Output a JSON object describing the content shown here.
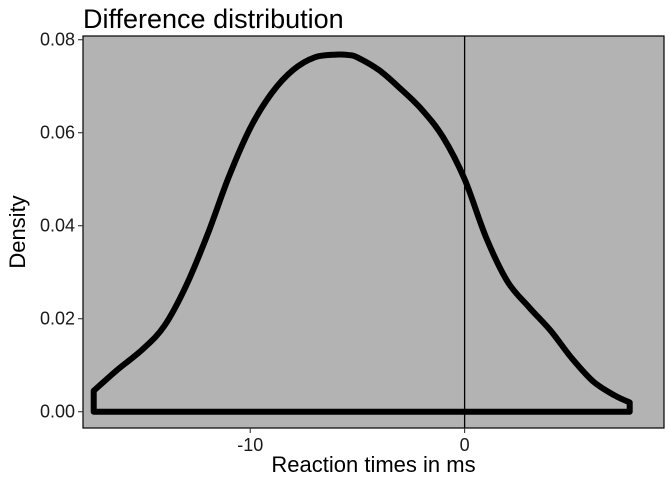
{
  "chart_data": {
    "type": "area",
    "title": "Difference distribution",
    "xlabel": "Reaction times in ms",
    "ylabel": "Density",
    "xlim": [
      -17.8,
      9.3
    ],
    "ylim": [
      -0.0035,
      0.0808
    ],
    "x_ticks": [
      -10,
      0
    ],
    "x_tick_labels": [
      "-10",
      "0"
    ],
    "y_ticks": [
      0,
      0.02,
      0.04,
      0.06,
      0.08
    ],
    "y_tick_labels": [
      "0.00",
      "0.02",
      "0.04",
      "0.06",
      "0.08"
    ],
    "reference_line_x": 0,
    "grid": false,
    "legend": "none",
    "panel_color": "#b3b3b3",
    "line_color": "#000000",
    "series": [
      {
        "x": [
          -17.3,
          -16.2,
          -15.0,
          -14.0,
          -13.0,
          -12.0,
          -11.0,
          -10.0,
          -9.0,
          -8.0,
          -7.0,
          -6.0,
          -5.4,
          -5.0,
          -4.0,
          -3.0,
          -2.0,
          -1.0,
          0.0,
          1.0,
          2.0,
          3.0,
          4.0,
          5.0,
          6.0,
          7.0,
          7.7
        ],
        "y": [
          0.0045,
          0.009,
          0.0135,
          0.0185,
          0.027,
          0.038,
          0.0505,
          0.061,
          0.0685,
          0.0735,
          0.0762,
          0.0768,
          0.0767,
          0.0762,
          0.0735,
          0.0695,
          0.065,
          0.059,
          0.05,
          0.0375,
          0.028,
          0.0225,
          0.0175,
          0.0115,
          0.0065,
          0.0035,
          0.002
        ]
      }
    ]
  }
}
